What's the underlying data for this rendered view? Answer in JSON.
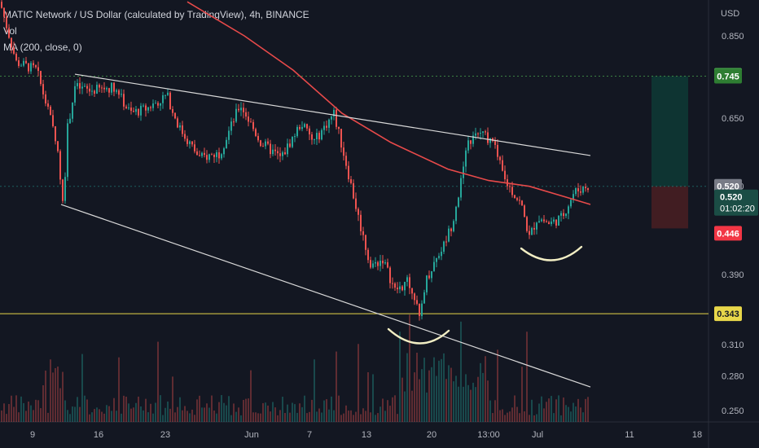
{
  "legend": {
    "title": "MATIC Network / US Dollar (calculated by TradingView), 4h, BINANCE",
    "vol": "Vol",
    "ma": "MA (200, close, 0)"
  },
  "currency": "USD",
  "colors": {
    "background": "#131722",
    "up": "#26a69a",
    "down": "#ef5350",
    "ma": "#e84a4a",
    "trendline": "#d9d9d9",
    "support": "#e8d74a",
    "target": "#4caf50",
    "stop": "#f23645"
  },
  "chart_data": {
    "type": "candlestick",
    "symbol": "MATICUSD",
    "interval": "4h",
    "exchange": "BINANCE",
    "y_axis": {
      "scale": "log",
      "ticks": [
        "0.850",
        "0.650",
        "0.520",
        "0.390",
        "0.310",
        "0.280",
        "0.250"
      ]
    },
    "x_axis": {
      "ticks": [
        "9",
        "16",
        "23",
        "Jun",
        "7",
        "13",
        "20",
        "13:00",
        "Jul",
        "11",
        "18"
      ]
    },
    "price_path": [
      [
        0,
        0.95
      ],
      [
        20,
        0.78
      ],
      [
        45,
        0.76
      ],
      [
        70,
        0.6
      ],
      [
        78,
        0.48
      ],
      [
        82,
        0.62
      ],
      [
        92,
        0.72
      ],
      [
        110,
        0.71
      ],
      [
        140,
        0.72
      ],
      [
        160,
        0.66
      ],
      [
        180,
        0.67
      ],
      [
        205,
        0.7
      ],
      [
        220,
        0.63
      ],
      [
        245,
        0.57
      ],
      [
        270,
        0.58
      ],
      [
        295,
        0.68
      ],
      [
        320,
        0.6
      ],
      [
        345,
        0.57
      ],
      [
        370,
        0.64
      ],
      [
        385,
        0.6
      ],
      [
        410,
        0.66
      ],
      [
        425,
        0.56
      ],
      [
        440,
        0.47
      ],
      [
        455,
        0.4
      ],
      [
        470,
        0.41
      ],
      [
        485,
        0.37
      ],
      [
        500,
        0.38
      ],
      [
        508,
        0.37
      ],
      [
        515,
        0.335
      ],
      [
        522,
        0.38
      ],
      [
        535,
        0.41
      ],
      [
        545,
        0.43
      ],
      [
        555,
        0.46
      ],
      [
        565,
        0.52
      ],
      [
        575,
        0.6
      ],
      [
        590,
        0.62
      ],
      [
        605,
        0.6
      ],
      [
        620,
        0.53
      ],
      [
        640,
        0.49
      ],
      [
        650,
        0.44
      ],
      [
        660,
        0.47
      ],
      [
        675,
        0.46
      ],
      [
        690,
        0.47
      ],
      [
        705,
        0.51
      ],
      [
        720,
        0.52
      ]
    ],
    "ma_path": [
      [
        230,
        0.95
      ],
      [
        300,
        0.85
      ],
      [
        360,
        0.76
      ],
      [
        420,
        0.66
      ],
      [
        480,
        0.6
      ],
      [
        550,
        0.55
      ],
      [
        600,
        0.53
      ],
      [
        650,
        0.52
      ],
      [
        700,
        0.5
      ],
      [
        725,
        0.49
      ]
    ],
    "upper_trendline": {
      "from": [
        92,
        0.75
      ],
      "to": [
        725,
        0.575
      ]
    },
    "lower_trendline": {
      "from": [
        75,
        0.49
      ],
      "to": [
        725,
        0.27
      ]
    },
    "support_level": 0.343,
    "current_price": 0.52,
    "countdown": "01:02:20",
    "target_price": 0.745,
    "ask_price": 0.747,
    "stop_price": 0.446,
    "last_close": 0.52,
    "right_tags": [
      "0.747",
      "0.745",
      "0.520",
      "0.446",
      "0.343"
    ]
  }
}
